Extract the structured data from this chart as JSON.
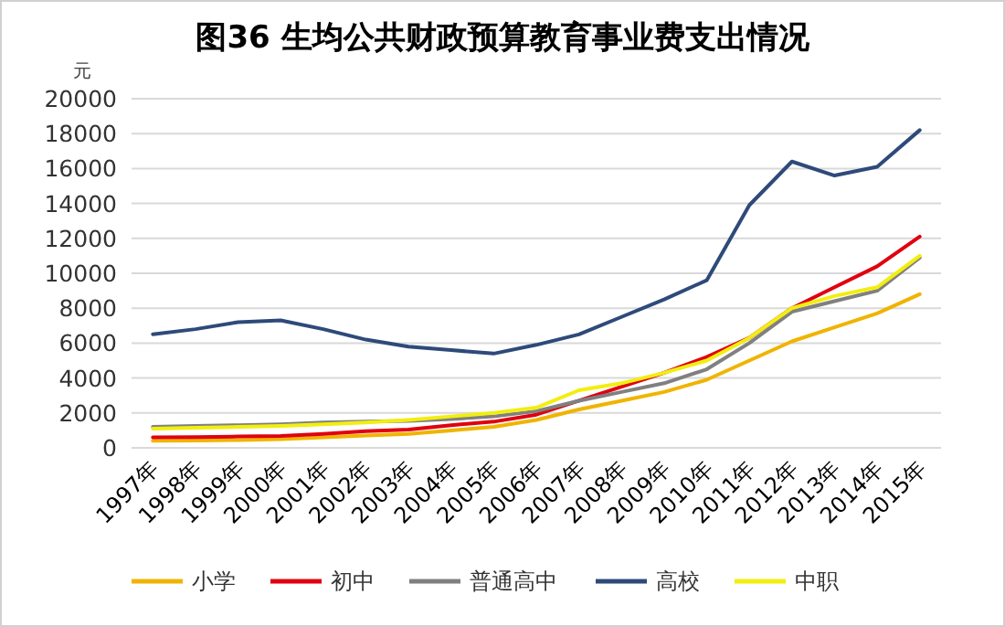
{
  "chart_data": {
    "type": "line",
    "title": "图36  生均公共财政预算教育事业费支出情况",
    "ylabel": "元",
    "categories": [
      "1997年",
      "1998年",
      "1999年",
      "2000年",
      "2001年",
      "2002年",
      "2003年",
      "2004年",
      "2005年",
      "2006年",
      "2007年",
      "2008年",
      "2009年",
      "2010年",
      "2011年",
      "2012年",
      "2013年",
      "2014年",
      "2015年"
    ],
    "series": [
      {
        "name": "小学",
        "color": "#f0b400",
        "values": [
          400,
          420,
          450,
          500,
          600,
          700,
          800,
          1000,
          1200,
          1600,
          2200,
          2700,
          3200,
          3900,
          5000,
          6100,
          6900,
          7700,
          8800
        ]
      },
      {
        "name": "初中",
        "color": "#e00010",
        "values": [
          600,
          620,
          650,
          680,
          800,
          950,
          1050,
          1300,
          1500,
          1900,
          2700,
          3500,
          4300,
          5200,
          6300,
          8000,
          9200,
          10400,
          12100
        ]
      },
      {
        "name": "普通高中",
        "color": "#808080",
        "values": [
          1200,
          1250,
          1300,
          1350,
          1450,
          1500,
          1550,
          1650,
          1800,
          2100,
          2700,
          3200,
          3700,
          4500,
          6000,
          7800,
          8400,
          9000,
          10900
        ]
      },
      {
        "name": "高校",
        "color": "#2e4a7a",
        "values": [
          6500,
          6800,
          7200,
          7300,
          6800,
          6200,
          5800,
          5600,
          5400,
          5900,
          6500,
          7500,
          8500,
          9600,
          13900,
          16400,
          15600,
          16100,
          18200
        ]
      },
      {
        "name": "中职",
        "color": "#f2ee10",
        "values": [
          1100,
          1150,
          1200,
          1250,
          1350,
          1450,
          1600,
          1800,
          2000,
          2300,
          3300,
          3700,
          4300,
          5000,
          6300,
          8000,
          8700,
          9200,
          11000
        ]
      }
    ],
    "ylim": [
      0,
      20000
    ],
    "yticks": [
      0,
      2000,
      4000,
      6000,
      8000,
      10000,
      12000,
      14000,
      16000,
      18000,
      20000
    ],
    "grid": "y",
    "legend": "bottom"
  }
}
